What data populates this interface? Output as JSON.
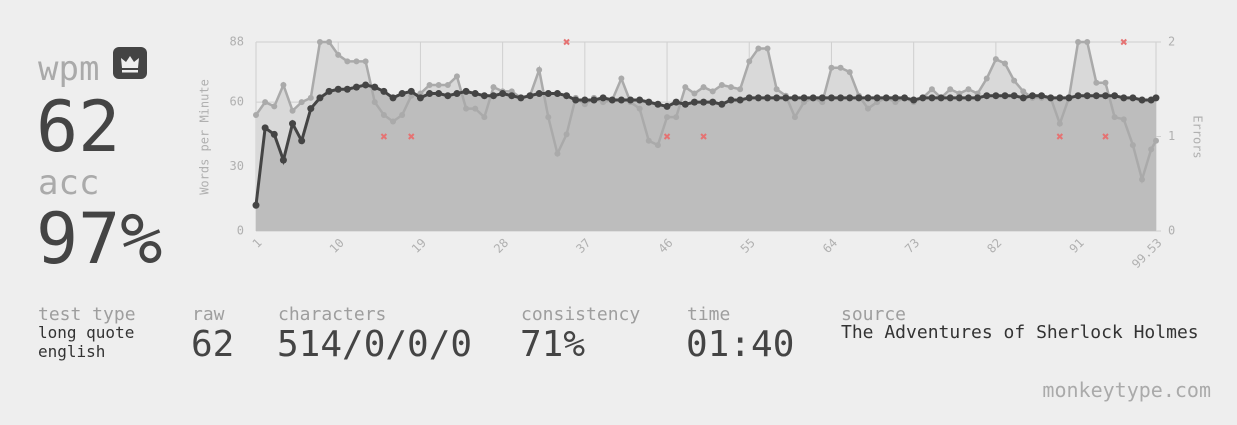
{
  "stats": {
    "wpm_label": "wpm",
    "wpm": 62,
    "acc_label": "acc",
    "acc": "97%"
  },
  "details": {
    "test_type": {
      "label": "test type",
      "lines": [
        "long quote",
        "english"
      ]
    },
    "raw": {
      "label": "raw",
      "value": 62
    },
    "characters": {
      "label": "characters",
      "value": "514/0/0/0"
    },
    "consistency": {
      "label": "consistency",
      "value": "71%"
    },
    "time": {
      "label": "time",
      "value": "01:40"
    },
    "source": {
      "label": "source",
      "value": "The Adventures of Sherlock Holmes"
    }
  },
  "footer": "monkeytype.com",
  "chart_data": {
    "type": "line",
    "y_label": "Words per Minute",
    "y2_label": "Errors",
    "x": [
      1,
      2,
      3,
      4,
      5,
      6,
      7,
      8,
      9,
      10,
      11,
      12,
      13,
      14,
      15,
      16,
      17,
      18,
      19,
      20,
      21,
      22,
      23,
      24,
      25,
      26,
      27,
      28,
      29,
      30,
      31,
      32,
      33,
      34,
      35,
      36,
      37,
      38,
      39,
      40,
      41,
      42,
      43,
      44,
      45,
      46,
      47,
      48,
      49,
      50,
      51,
      52,
      53,
      54,
      55,
      56,
      57,
      58,
      59,
      60,
      61,
      62,
      63,
      64,
      65,
      66,
      67,
      68,
      69,
      70,
      71,
      72,
      73,
      74,
      75,
      76,
      77,
      78,
      79,
      80,
      81,
      82,
      83,
      84,
      85,
      86,
      87,
      88,
      89,
      90,
      91,
      92,
      93,
      94,
      95,
      96,
      97,
      98,
      99,
      99.53
    ],
    "series": [
      {
        "color": "#444444",
        "fill": "#bdbdbd",
        "values": [
          12,
          48,
          45,
          33,
          50,
          42,
          57,
          62,
          65,
          66,
          66,
          67,
          68,
          67,
          65,
          62,
          64,
          65,
          62,
          64,
          64,
          63,
          64,
          65,
          64,
          63,
          63,
          64,
          63,
          62,
          63,
          64,
          64,
          64,
          63,
          61,
          61,
          61,
          62,
          61,
          61,
          61,
          61,
          60,
          59,
          58,
          60,
          59,
          60,
          60,
          60,
          59,
          61,
          61,
          62,
          62,
          62,
          62,
          62,
          62,
          62,
          62,
          62,
          62,
          62,
          62,
          62,
          62,
          62,
          62,
          62,
          62,
          61,
          62,
          62,
          62,
          62,
          62,
          62,
          62,
          63,
          63,
          63,
          63,
          62,
          63,
          63,
          62,
          62,
          62,
          63,
          63,
          63,
          63,
          63,
          62,
          62,
          61,
          61,
          62
        ]
      },
      {
        "color": "#aaaaaa",
        "fill": "#d9d9d9",
        "values": [
          54,
          60,
          58,
          68,
          56,
          60,
          62,
          88,
          88,
          82,
          79,
          79,
          79,
          60,
          54,
          51,
          54,
          63,
          64,
          68,
          68,
          68,
          72,
          57,
          57,
          53,
          67,
          65,
          65,
          62,
          63,
          75,
          53,
          36,
          45,
          62,
          59,
          62,
          60,
          61,
          71,
          60,
          57,
          42,
          40,
          53,
          53,
          67,
          64,
          67,
          65,
          68,
          67,
          66,
          79,
          85,
          85,
          66,
          63,
          53,
          60,
          62,
          60,
          76,
          76,
          74,
          63,
          57,
          60,
          62,
          60,
          62,
          60,
          62,
          66,
          62,
          66,
          64,
          66,
          64,
          71,
          80,
          78,
          70,
          65,
          62,
          62,
          62,
          50,
          62,
          88,
          88,
          69,
          69,
          53,
          52,
          40,
          24,
          38,
          42
        ]
      }
    ],
    "errors": {
      "color": "#e57373",
      "axis": "y2",
      "x": [
        15,
        18,
        35,
        46,
        50,
        89,
        94,
        96
      ],
      "values": [
        1,
        1,
        2,
        1,
        1,
        1,
        1,
        2
      ]
    },
    "xlim": [
      1,
      99.53
    ],
    "xticks": [
      1,
      10,
      19,
      28,
      37,
      46,
      55,
      64,
      73,
      82,
      91,
      99.53
    ],
    "ylim": [
      0,
      88
    ],
    "yticks": [
      0,
      30,
      60,
      88
    ],
    "y2lim": [
      0,
      2
    ],
    "y2ticks": [
      0,
      1,
      2
    ],
    "grid": true
  }
}
